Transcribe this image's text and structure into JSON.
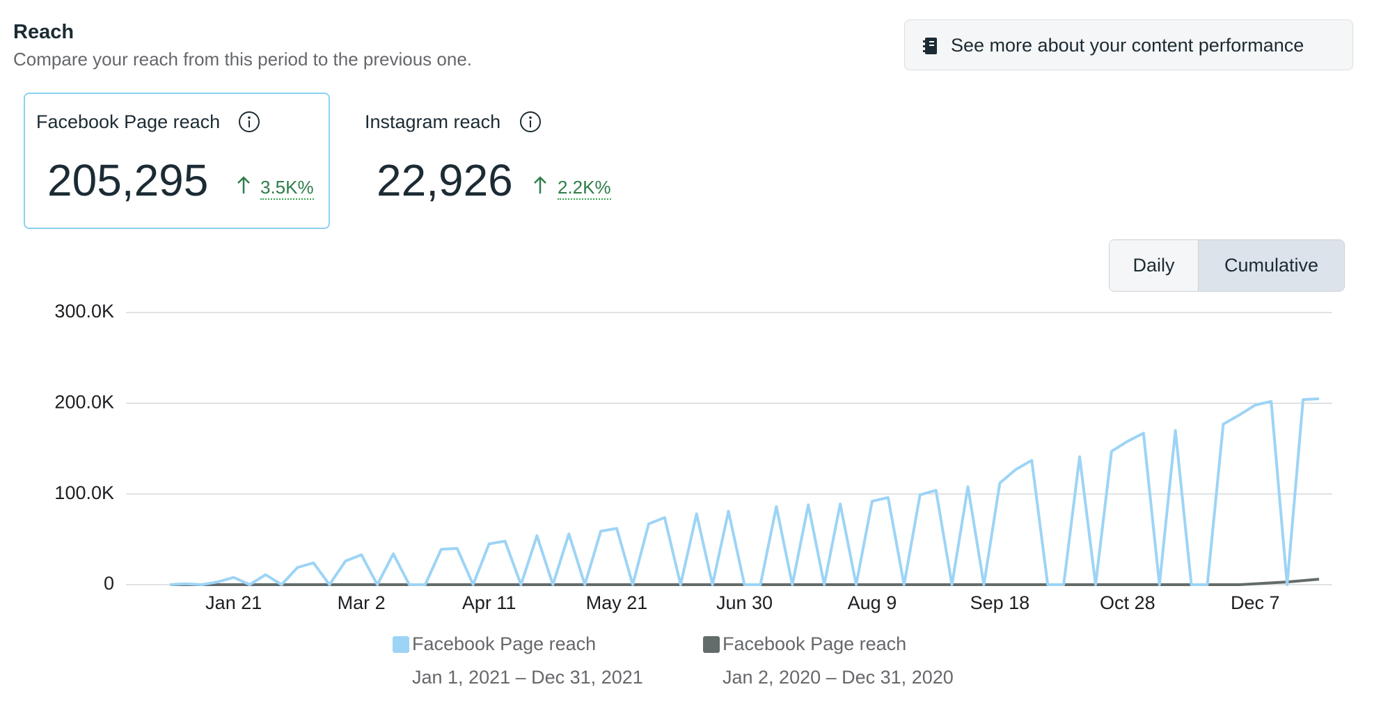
{
  "header": {
    "title": "Reach",
    "subtitle": "Compare your reach from this period to the previous one.",
    "button": "See more about your content performance"
  },
  "metrics": [
    {
      "label": "Facebook Page reach",
      "value": "205,295",
      "change": "3.5K%"
    },
    {
      "label": "Instagram reach",
      "value": "22,926",
      "change": "2.2K%"
    }
  ],
  "toggle": [
    "Daily",
    "Cumulative"
  ],
  "chart_data": {
    "type": "line",
    "categories": [
      null,
      null,
      null,
      null,
      "Jan 21",
      null,
      null,
      null,
      null,
      null,
      null,
      null,
      "Mar 2",
      null,
      null,
      null,
      null,
      null,
      null,
      null,
      "Apr 11",
      null,
      null,
      null,
      null,
      null,
      null,
      null,
      "May 21",
      null,
      null,
      null,
      null,
      null,
      null,
      null,
      "Jun 30",
      null,
      null,
      null,
      null,
      null,
      null,
      null,
      "Aug 9",
      null,
      null,
      null,
      null,
      null,
      null,
      null,
      "Sep 18",
      null,
      null,
      null,
      null,
      null,
      null,
      null,
      "Oct 28",
      null,
      null,
      null,
      null,
      null,
      null,
      null,
      "Dec 7",
      null,
      null,
      null,
      null
    ],
    "series": [
      {
        "name": "Facebook Page reach",
        "period": "Jan 1, 2021 – Dec 31, 2021",
        "color": "#9dd4f5",
        "values": [
          0,
          1000,
          0,
          3000,
          8000,
          0,
          11000,
          0,
          19000,
          24000,
          0,
          26000,
          33000,
          0,
          34000,
          0,
          0,
          39000,
          40000,
          0,
          45000,
          48000,
          0,
          54000,
          0,
          56000,
          0,
          59000,
          62000,
          0,
          67000,
          74000,
          0,
          78000,
          0,
          81000,
          0,
          0,
          86000,
          0,
          88000,
          0,
          89000,
          0,
          92000,
          96000,
          0,
          99000,
          104000,
          0,
          108000,
          0,
          112000,
          127000,
          137000,
          0,
          0,
          141000,
          0,
          147000,
          158000,
          167000,
          0,
          170000,
          0,
          0,
          177000,
          187000,
          198000,
          202000,
          0,
          204000,
          205000
        ]
      },
      {
        "name": "Facebook Page reach",
        "period": "Jan 2, 2020 – Dec 31, 2020",
        "color": "#636b6b",
        "values": [
          0,
          0,
          0,
          0,
          0,
          0,
          0,
          0,
          0,
          0,
          0,
          0,
          0,
          0,
          0,
          0,
          0,
          0,
          0,
          0,
          0,
          0,
          0,
          0,
          0,
          0,
          0,
          0,
          0,
          0,
          0,
          0,
          0,
          0,
          0,
          0,
          0,
          0,
          0,
          0,
          0,
          0,
          0,
          0,
          0,
          0,
          0,
          0,
          0,
          0,
          0,
          0,
          0,
          0,
          0,
          0,
          0,
          0,
          0,
          0,
          0,
          0,
          0,
          0,
          0,
          0,
          0,
          0,
          1000,
          2000,
          3000,
          4500,
          6000
        ]
      }
    ],
    "ylim": [
      0,
      300000
    ],
    "yticks": [
      0,
      {
        "value": 100000,
        "label": "100.0K"
      },
      {
        "value": 200000,
        "label": "200.0K"
      },
      {
        "value": 300000,
        "label": "300.0K"
      }
    ],
    "grid": true
  }
}
